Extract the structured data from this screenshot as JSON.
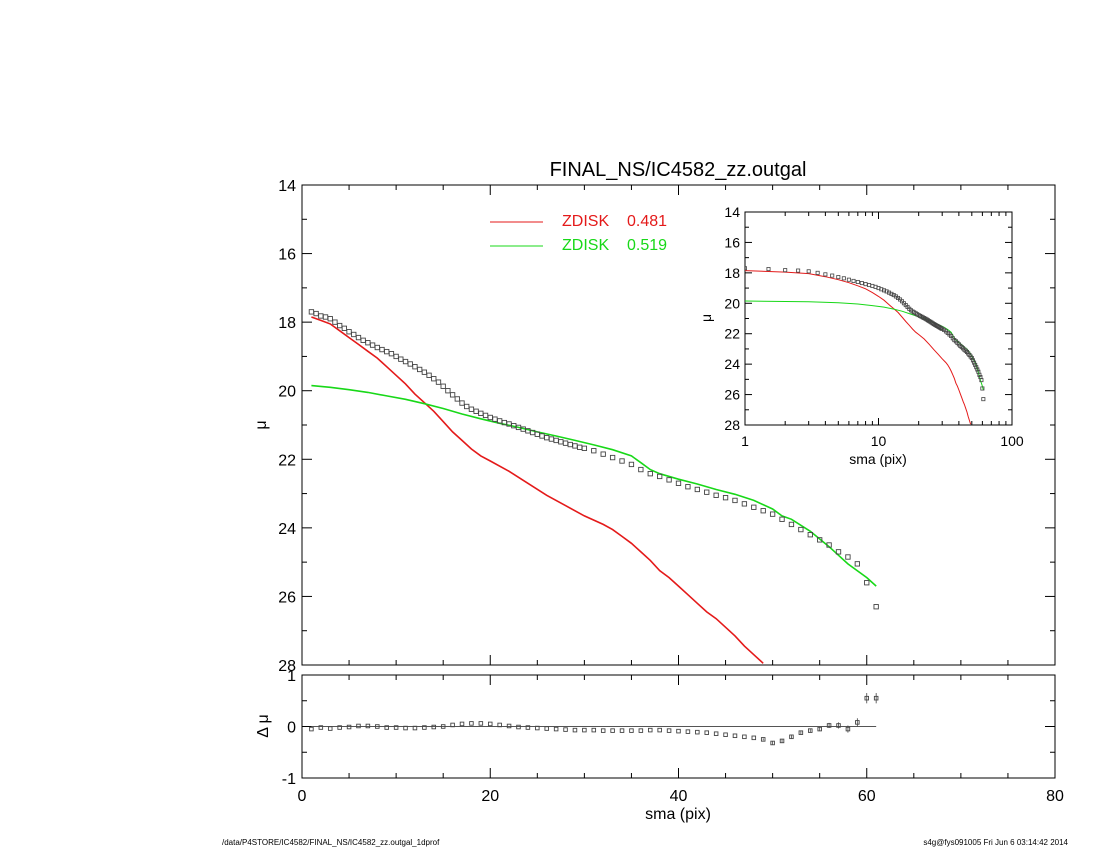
{
  "title": "FINAL_NS/IC4582_zz.outgal",
  "footer": {
    "left": "/data/P4STORE/IC4582/FINAL_NS/IC4582_zz.outgal_1dprof",
    "right": "s4g@fys091005  Fri Jun  6 03:14:42 2014"
  },
  "colors": {
    "disk1": "#e41a1a",
    "disk2": "#18d818",
    "data": "#444444",
    "axis": "#000000"
  },
  "legend": [
    {
      "name": "ZDISK",
      "value": "0.481",
      "color": "#e41a1a"
    },
    {
      "name": "ZDISK",
      "value": "0.519",
      "color": "#18d818"
    }
  ],
  "chart_data": [
    {
      "panel": "main",
      "type": "scatter",
      "title": "FINAL_NS/IC4582_zz.outgal",
      "ylabel": "μ",
      "xlim": [
        0,
        80
      ],
      "ylim": [
        28,
        14
      ],
      "xticks": [
        0,
        20,
        40,
        60,
        80
      ],
      "xtick_labels": [
        "",
        "",
        "",
        "",
        ""
      ],
      "yticks": [
        14,
        16,
        18,
        20,
        22,
        24,
        26,
        28
      ],
      "ytick_labels": [
        "14",
        "16",
        "18",
        "20",
        "22",
        "24",
        "26",
        "28"
      ],
      "data_points": {
        "x": [
          1.0,
          1.5,
          2.0,
          2.5,
          3.0,
          3.5,
          4.0,
          4.5,
          5.0,
          5.5,
          6.0,
          6.5,
          7.0,
          7.5,
          8.0,
          8.5,
          9.0,
          9.5,
          10.0,
          10.5,
          11.0,
          11.5,
          12.0,
          12.5,
          13.0,
          13.5,
          14.0,
          14.5,
          15.0,
          15.5,
          16.0,
          16.5,
          17.0,
          17.5,
          18.0,
          18.5,
          19.0,
          19.5,
          20.0,
          20.5,
          21.0,
          21.5,
          22.0,
          22.5,
          23.0,
          23.5,
          24.0,
          24.5,
          25.0,
          25.5,
          26.0,
          26.5,
          27.0,
          27.5,
          28.0,
          28.5,
          29.0,
          29.5,
          30.0,
          31.0,
          32.0,
          33.0,
          34.0,
          35.0,
          36.0,
          37.0,
          38.0,
          39.0,
          40.0,
          41.0,
          42.0,
          43.0,
          44.0,
          45.0,
          46.0,
          47.0,
          48.0,
          49.0,
          50.0,
          51.0,
          52.0,
          53.0,
          54.0,
          55.0,
          56.0,
          57.0,
          58.0,
          59.0,
          60.0,
          61.0
        ],
        "y": [
          17.7,
          17.75,
          17.82,
          17.85,
          17.9,
          18.0,
          18.1,
          18.18,
          18.28,
          18.36,
          18.45,
          18.53,
          18.6,
          18.67,
          18.74,
          18.8,
          18.86,
          18.92,
          19.0,
          19.08,
          19.15,
          19.22,
          19.3,
          19.38,
          19.46,
          19.55,
          19.65,
          19.75,
          19.87,
          20.0,
          20.12,
          20.24,
          20.36,
          20.46,
          20.54,
          20.6,
          20.66,
          20.72,
          20.78,
          20.83,
          20.88,
          20.93,
          20.97,
          21.02,
          21.07,
          21.12,
          21.17,
          21.22,
          21.27,
          21.32,
          21.37,
          21.41,
          21.45,
          21.49,
          21.53,
          21.57,
          21.61,
          21.65,
          21.68,
          21.75,
          21.85,
          21.95,
          22.05,
          22.15,
          22.3,
          22.42,
          22.5,
          22.6,
          22.7,
          22.8,
          22.88,
          22.96,
          23.05,
          23.12,
          23.2,
          23.3,
          23.4,
          23.5,
          23.6,
          23.75,
          23.9,
          24.05,
          24.2,
          24.35,
          24.5,
          24.7,
          24.85,
          25.05,
          25.6,
          26.3
        ]
      },
      "series": [
        {
          "name": "ZDISK  0.481",
          "x": [
            1.0,
            2.0,
            3.0,
            4.0,
            5.0,
            6.0,
            7.0,
            8.0,
            9.0,
            10.0,
            11.0,
            12.0,
            13.0,
            14.0,
            15.0,
            16.0,
            17.0,
            18.0,
            19.0,
            20.0,
            22.0,
            24.0,
            26.0,
            28.0,
            30.0,
            32.0,
            33.0,
            34.0,
            35.0,
            36.0,
            37.0,
            38.0,
            39.0,
            40.0,
            41.0,
            42.0,
            43.0,
            44.0,
            45.0,
            46.0,
            47.0,
            48.0,
            49.0
          ],
          "y": [
            17.85,
            17.95,
            18.05,
            18.25,
            18.45,
            18.65,
            18.85,
            19.05,
            19.3,
            19.55,
            19.8,
            20.1,
            20.35,
            20.6,
            20.9,
            21.2,
            21.45,
            21.7,
            21.9,
            22.05,
            22.35,
            22.7,
            23.05,
            23.35,
            23.65,
            23.9,
            24.05,
            24.25,
            24.45,
            24.7,
            24.95,
            25.25,
            25.45,
            25.7,
            25.95,
            26.2,
            26.45,
            26.65,
            26.9,
            27.15,
            27.45,
            27.7,
            27.95
          ]
        },
        {
          "name": "ZDISK  0.519",
          "x": [
            1.0,
            3.0,
            5.0,
            7.0,
            9.0,
            11.0,
            13.0,
            15.0,
            17.0,
            19.0,
            21.0,
            23.0,
            25.0,
            27.0,
            29.0,
            31.0,
            33.0,
            35.0,
            36.0,
            37.0,
            38.0,
            40.0,
            42.0,
            44.0,
            46.0,
            48.0,
            50.0,
            51.0,
            52.0,
            54.0,
            56.0,
            58.0,
            60.0,
            61.0
          ],
          "y": [
            19.85,
            19.9,
            19.97,
            20.05,
            20.15,
            20.25,
            20.38,
            20.52,
            20.68,
            20.82,
            20.95,
            21.07,
            21.2,
            21.32,
            21.45,
            21.58,
            21.72,
            21.9,
            22.1,
            22.3,
            22.42,
            22.58,
            22.72,
            22.88,
            23.02,
            23.2,
            23.45,
            23.65,
            23.75,
            24.1,
            24.55,
            25.05,
            25.45,
            25.7
          ]
        }
      ]
    },
    {
      "panel": "inset",
      "type": "scatter",
      "xlabel": "sma (pix)",
      "ylabel": "μ",
      "xscale": "log",
      "xlim": [
        1,
        100
      ],
      "ylim": [
        28,
        14
      ],
      "xticks": [
        1,
        10,
        100
      ],
      "xtick_labels": [
        "1",
        "10",
        "100"
      ],
      "yticks": [
        14,
        16,
        18,
        20,
        22,
        24,
        26,
        28
      ],
      "ytick_labels": [
        "14",
        "16",
        "18",
        "20",
        "22",
        "24",
        "26",
        "28"
      ]
    },
    {
      "panel": "residual",
      "type": "scatter",
      "xlabel": "sma (pix)",
      "ylabel": "Δ μ",
      "xlim": [
        0,
        80
      ],
      "ylim": [
        -1,
        1
      ],
      "xticks": [
        0,
        20,
        40,
        60,
        80
      ],
      "xtick_labels": [
        "0",
        "20",
        "40",
        "60",
        "80"
      ],
      "yticks": [
        -1,
        0,
        1
      ],
      "ytick_labels": [
        "-1",
        "0",
        "1"
      ],
      "x": [
        1.0,
        2.0,
        3.0,
        4.0,
        5.0,
        6.0,
        7.0,
        8.0,
        9.0,
        10.0,
        11.0,
        12.0,
        13.0,
        14.0,
        15.0,
        16.0,
        17.0,
        18.0,
        19.0,
        20.0,
        21.0,
        22.0,
        23.0,
        24.0,
        25.0,
        26.0,
        27.0,
        28.0,
        29.0,
        30.0,
        31.0,
        32.0,
        33.0,
        34.0,
        35.0,
        36.0,
        37.0,
        38.0,
        39.0,
        40.0,
        41.0,
        42.0,
        43.0,
        44.0,
        45.0,
        46.0,
        47.0,
        48.0,
        49.0,
        50.0,
        51.0,
        52.0,
        53.0,
        54.0,
        55.0,
        56.0,
        57.0,
        58.0,
        59.0,
        60.0,
        61.0
      ],
      "y": [
        -0.05,
        -0.02,
        -0.04,
        -0.02,
        -0.01,
        0.01,
        0.01,
        0.0,
        -0.02,
        -0.02,
        -0.03,
        -0.03,
        -0.02,
        -0.01,
        0.0,
        0.03,
        0.05,
        0.06,
        0.06,
        0.05,
        0.03,
        0.01,
        -0.01,
        -0.02,
        -0.03,
        -0.04,
        -0.05,
        -0.06,
        -0.07,
        -0.07,
        -0.07,
        -0.08,
        -0.08,
        -0.08,
        -0.08,
        -0.08,
        -0.07,
        -0.07,
        -0.08,
        -0.09,
        -0.1,
        -0.11,
        -0.12,
        -0.14,
        -0.16,
        -0.18,
        -0.2,
        -0.22,
        -0.25,
        -0.32,
        -0.28,
        -0.2,
        -0.12,
        -0.08,
        -0.05,
        0.02,
        0.02,
        -0.05,
        0.08,
        0.55,
        0.55
      ],
      "err": [
        0.0,
        0.0,
        0.0,
        0.0,
        0.0,
        0.0,
        0.0,
        0.0,
        0.0,
        0.0,
        0.0,
        0.0,
        0.0,
        0.0,
        0.0,
        0.0,
        0.0,
        0.0,
        0.0,
        0.0,
        0.0,
        0.0,
        0.0,
        0.0,
        0.0,
        0.0,
        0.0,
        0.0,
        0.0,
        0.0,
        0.0,
        0.0,
        0.0,
        0.0,
        0.0,
        0.0,
        0.0,
        0.0,
        0.0,
        0.0,
        0.0,
        0.0,
        0.0,
        0.0,
        0.0,
        0.0,
        0.0,
        0.0,
        0.02,
        0.03,
        0.03,
        0.03,
        0.03,
        0.03,
        0.04,
        0.05,
        0.06,
        0.07,
        0.08,
        0.1,
        0.1
      ]
    }
  ]
}
